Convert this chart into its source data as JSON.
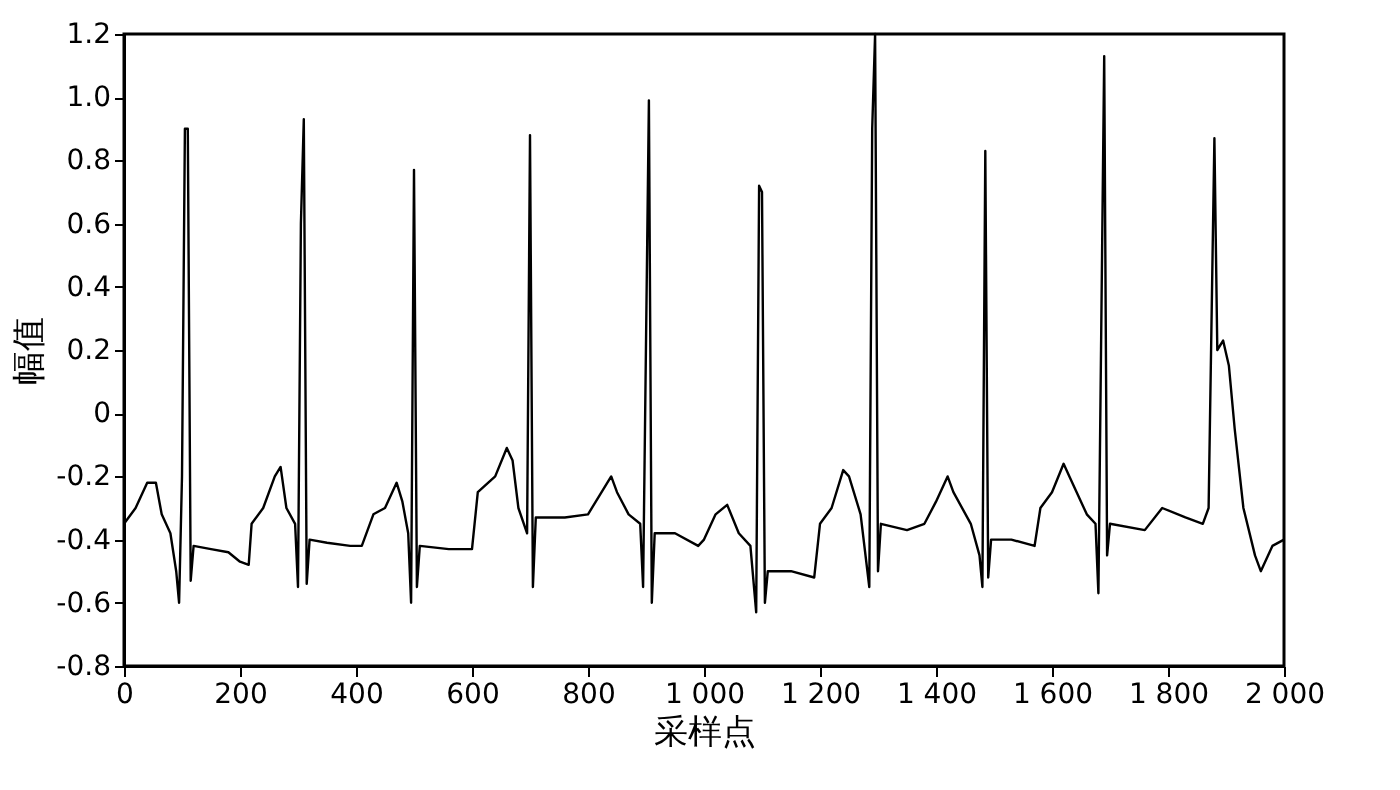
{
  "chart_data": {
    "type": "line",
    "xlabel": "采样点",
    "ylabel": "幅值",
    "grid": false,
    "marker": "none",
    "line_style": "solid",
    "xlim": [
      0,
      2000
    ],
    "ylim": [
      -0.8,
      1.2
    ],
    "xticks": [
      0,
      200,
      400,
      600,
      800,
      {
        "value": 1000,
        "label": "1 000"
      },
      {
        "value": 1200,
        "label": "1 200"
      },
      {
        "value": 1400,
        "label": "1 400"
      },
      {
        "value": 1600,
        "label": "1 600"
      },
      {
        "value": 1800,
        "label": "1 800"
      },
      {
        "value": 2000,
        "label": "2 000"
      }
    ],
    "yticks": [
      -0.8,
      -0.6,
      -0.4,
      -0.2,
      0,
      0.2,
      0.4,
      0.6,
      0.8,
      {
        "value": 1.0,
        "label": "1.0"
      },
      1.2
    ],
    "series": [
      {
        "color": "#000000",
        "x": [
          0,
          20,
          40,
          55,
          65,
          80,
          90,
          95,
          100,
          105,
          110,
          115,
          120,
          150,
          180,
          200,
          215,
          220,
          240,
          260,
          270,
          280,
          295,
          300,
          305,
          310,
          315,
          320,
          350,
          390,
          410,
          430,
          450,
          470,
          480,
          490,
          495,
          500,
          505,
          510,
          560,
          600,
          610,
          640,
          660,
          670,
          680,
          695,
          700,
          705,
          710,
          760,
          800,
          820,
          840,
          850,
          870,
          890,
          895,
          905,
          910,
          915,
          950,
          990,
          1000,
          1020,
          1040,
          1060,
          1080,
          1090,
          1095,
          1100,
          1105,
          1110,
          1150,
          1190,
          1200,
          1220,
          1240,
          1250,
          1270,
          1285,
          1290,
          1295,
          1300,
          1305,
          1350,
          1380,
          1400,
          1420,
          1430,
          1460,
          1475,
          1480,
          1485,
          1490,
          1495,
          1530,
          1570,
          1580,
          1600,
          1620,
          1630,
          1660,
          1675,
          1680,
          1690,
          1695,
          1700,
          1760,
          1790,
          1830,
          1860,
          1870,
          1880,
          1885,
          1895,
          1905,
          1915,
          1930,
          1950,
          1960,
          1980,
          2000
        ],
        "values": [
          -0.35,
          -0.3,
          -0.22,
          -0.22,
          -0.32,
          -0.38,
          -0.5,
          -0.6,
          -0.2,
          0.9,
          0.9,
          -0.53,
          -0.42,
          -0.43,
          -0.44,
          -0.47,
          -0.48,
          -0.35,
          -0.3,
          -0.2,
          -0.17,
          -0.3,
          -0.35,
          -0.55,
          0.6,
          0.93,
          -0.54,
          -0.4,
          -0.41,
          -0.42,
          -0.42,
          -0.32,
          -0.3,
          -0.22,
          -0.28,
          -0.38,
          -0.6,
          0.77,
          -0.55,
          -0.42,
          -0.43,
          -0.43,
          -0.25,
          -0.2,
          -0.11,
          -0.15,
          -0.3,
          -0.38,
          0.88,
          -0.55,
          -0.33,
          -0.33,
          -0.32,
          -0.26,
          -0.2,
          -0.25,
          -0.32,
          -0.35,
          -0.55,
          0.99,
          -0.6,
          -0.38,
          -0.38,
          -0.42,
          -0.4,
          -0.32,
          -0.29,
          -0.38,
          -0.42,
          -0.63,
          0.72,
          0.7,
          -0.6,
          -0.5,
          -0.5,
          -0.52,
          -0.35,
          -0.3,
          -0.18,
          -0.2,
          -0.32,
          -0.55,
          0.9,
          1.2,
          -0.5,
          -0.35,
          -0.37,
          -0.35,
          -0.28,
          -0.2,
          -0.25,
          -0.35,
          -0.45,
          -0.55,
          0.83,
          -0.52,
          -0.4,
          -0.4,
          -0.42,
          -0.3,
          -0.25,
          -0.16,
          -0.2,
          -0.32,
          -0.35,
          -0.57,
          1.13,
          -0.45,
          -0.35,
          -0.37,
          -0.3,
          -0.33,
          -0.35,
          -0.3,
          0.87,
          0.2,
          0.23,
          0.15,
          -0.05,
          -0.3,
          -0.45,
          -0.5,
          -0.42,
          -0.4
        ]
      }
    ]
  }
}
